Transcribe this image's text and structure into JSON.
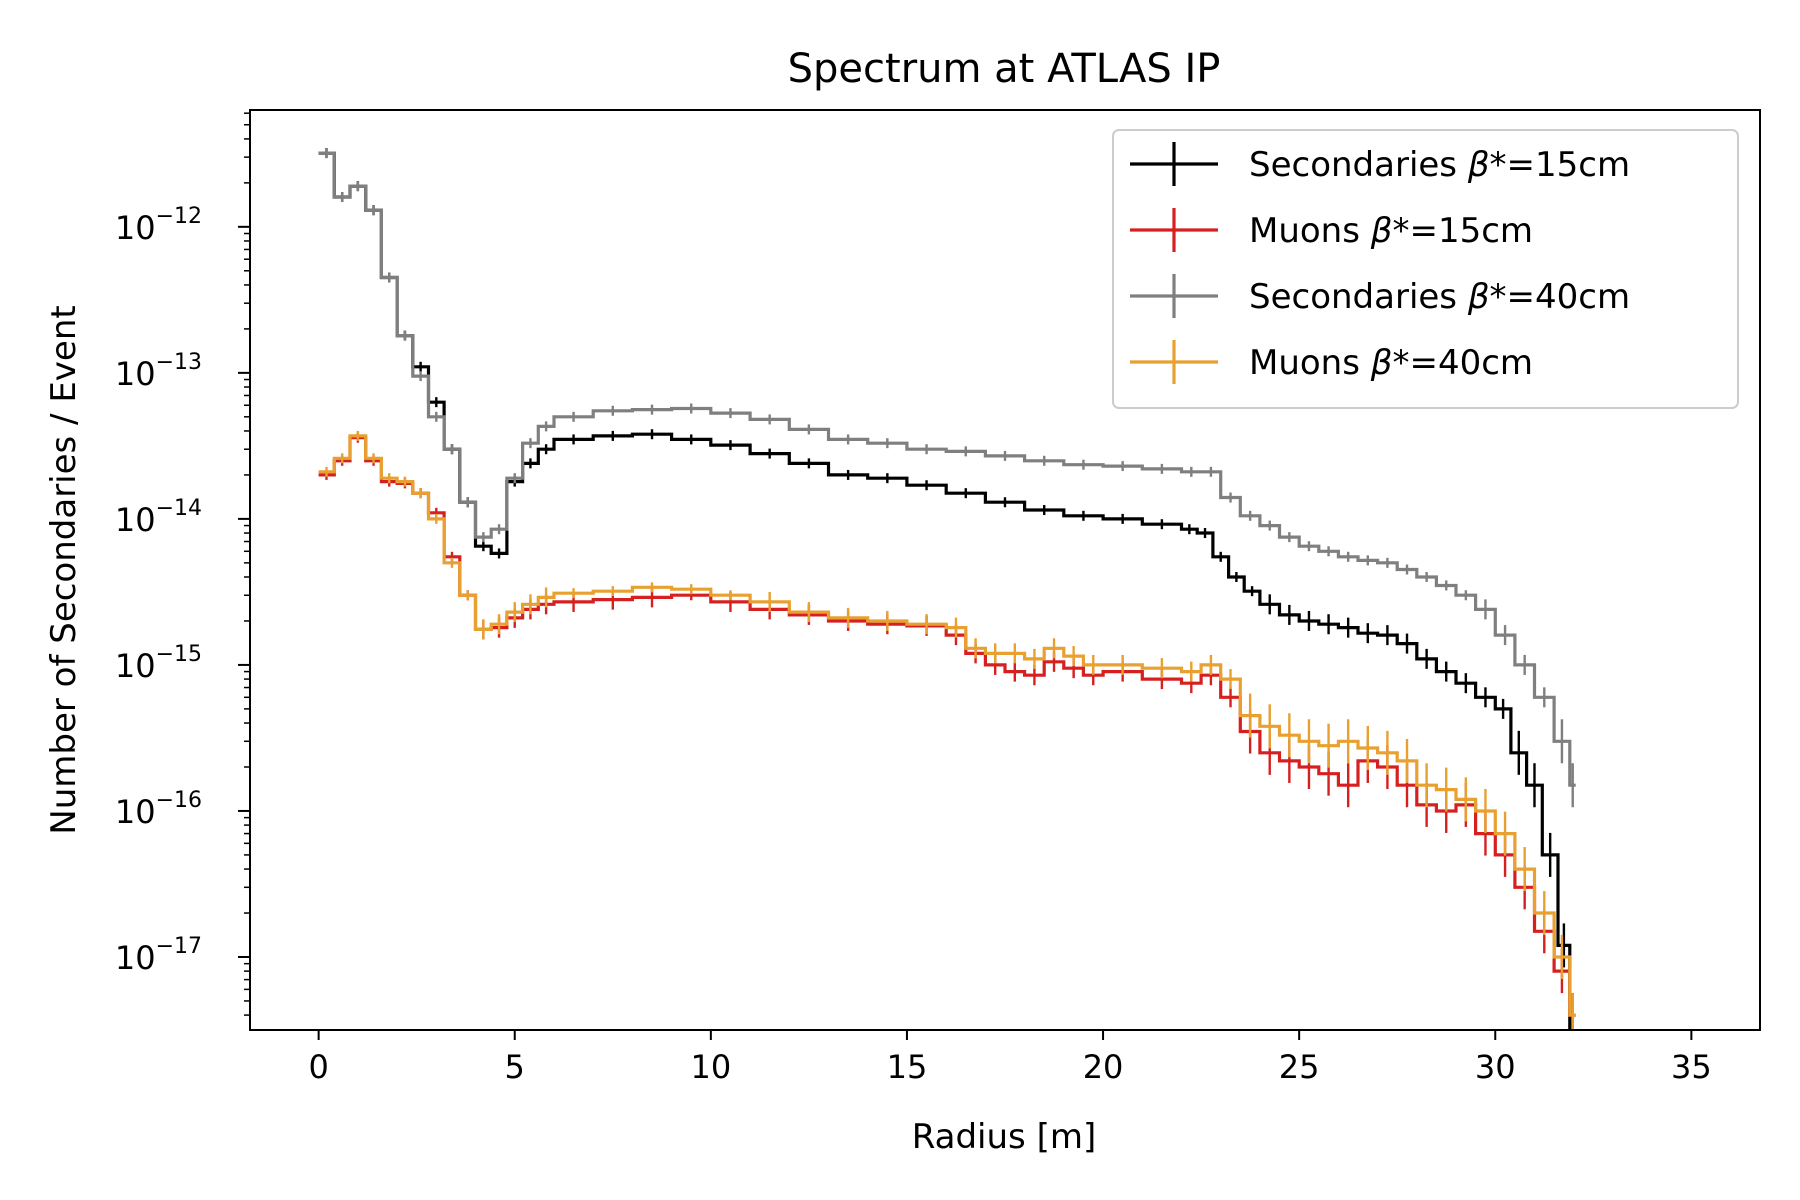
{
  "chart_data": {
    "type": "line",
    "title": "Spectrum at ATLAS IP",
    "xlabel": "Radius [m]",
    "ylabel": "Number of Secondaries / Event",
    "xlim": [
      -1.75,
      36.75
    ],
    "ylim_log10": [
      -17.5,
      -11.2
    ],
    "log_y": true,
    "grid": false,
    "legend_placement": "top-right",
    "x_ticks": [
      0,
      5,
      10,
      15,
      20,
      25,
      30,
      35
    ],
    "x_tick_labels": [
      "0",
      "5",
      "10",
      "15",
      "20",
      "25",
      "30",
      "35"
    ],
    "y_ticks_log10": [
      -12,
      -13,
      -14,
      -15,
      -16,
      -17
    ],
    "y_tick_labels": [
      {
        "base": "10",
        "exp": "−12"
      },
      {
        "base": "10",
        "exp": "−13"
      },
      {
        "base": "10",
        "exp": "−14"
      },
      {
        "base": "10",
        "exp": "−15"
      },
      {
        "base": "10",
        "exp": "−16"
      },
      {
        "base": "10",
        "exp": "−17"
      }
    ],
    "series": [
      {
        "name": "Secondaries β*=15cm",
        "label_prefix": "Secondaries ",
        "label_beta": "β",
        "label_suffix": "*=15cm",
        "color": "#000000",
        "x": [
          0.0,
          0.4,
          0.8,
          1.2,
          1.6,
          2.0,
          2.4,
          2.8,
          3.2,
          3.6,
          4.0,
          4.4,
          4.8,
          5.2,
          5.6,
          6.0,
          7.0,
          8.0,
          9.0,
          10.0,
          11.0,
          12.0,
          13.0,
          14.0,
          15.0,
          16.0,
          17.0,
          18.0,
          19.0,
          20.0,
          21.0,
          22.0,
          22.4,
          22.8,
          23.2,
          23.6,
          24.0,
          24.5,
          25.0,
          25.5,
          26.0,
          26.5,
          27.0,
          27.5,
          28.0,
          28.5,
          29.0,
          29.5,
          30.0,
          30.4,
          30.8,
          31.2,
          31.6,
          31.9
        ],
        "y": [
          3.2e-12,
          1.6e-12,
          1.9e-12,
          1.3e-12,
          4.5e-13,
          1.8e-13,
          1.1e-13,
          6.3e-14,
          3e-14,
          1.3e-14,
          6.5e-15,
          5.8e-15,
          1.8e-14,
          2.4e-14,
          3e-14,
          3.5e-14,
          3.7e-14,
          3.8e-14,
          3.5e-14,
          3.2e-14,
          2.8e-14,
          2.4e-14,
          2e-14,
          1.9e-14,
          1.7e-14,
          1.5e-14,
          1.3e-14,
          1.15e-14,
          1.05e-14,
          1e-14,
          9.2e-15,
          8.5e-15,
          8e-15,
          5.5e-15,
          4e-15,
          3.2e-15,
          2.6e-15,
          2.2e-15,
          2e-15,
          1.9e-15,
          1.8e-15,
          1.65e-15,
          1.6e-15,
          1.4e-15,
          1.1e-15,
          9e-16,
          7.5e-16,
          6e-16,
          5e-16,
          2.5e-16,
          1.5e-16,
          5e-17,
          1.2e-17,
          3e-18
        ]
      },
      {
        "name": "Muons β*=15cm",
        "label_prefix": "Muons ",
        "label_beta": "β",
        "label_suffix": "*=15cm",
        "color": "#d62020",
        "x": [
          0.0,
          0.4,
          0.8,
          1.2,
          1.6,
          2.0,
          2.4,
          2.8,
          3.2,
          3.6,
          4.0,
          4.4,
          4.8,
          5.2,
          5.6,
          6.0,
          7.0,
          8.0,
          9.0,
          10.0,
          11.0,
          12.0,
          13.0,
          14.0,
          15.0,
          16.0,
          16.5,
          17.0,
          17.5,
          18.0,
          18.5,
          19.0,
          19.5,
          20.0,
          21.0,
          22.0,
          22.5,
          23.0,
          23.5,
          24.0,
          24.5,
          25.0,
          25.5,
          26.0,
          26.5,
          27.0,
          27.5,
          28.0,
          28.5,
          29.0,
          29.5,
          30.0,
          30.5,
          31.0,
          31.5,
          31.9
        ],
        "y": [
          2e-14,
          2.5e-14,
          3.6e-14,
          2.5e-14,
          1.8e-14,
          1.75e-14,
          1.5e-14,
          1.1e-14,
          5.5e-15,
          3e-15,
          1.75e-15,
          1.8e-15,
          2.1e-15,
          2.4e-15,
          2.6e-15,
          2.7e-15,
          2.8e-15,
          2.9e-15,
          3e-15,
          2.7e-15,
          2.4e-15,
          2.2e-15,
          2e-15,
          1.9e-15,
          1.85e-15,
          1.6e-15,
          1.2e-15,
          1e-15,
          9e-16,
          8.5e-16,
          1.05e-15,
          9.5e-16,
          8.5e-16,
          9e-16,
          8e-16,
          7.5e-16,
          8.5e-16,
          6e-16,
          3.5e-16,
          2.5e-16,
          2.2e-16,
          2e-16,
          1.8e-16,
          1.5e-16,
          2.2e-16,
          2e-16,
          1.5e-16,
          1.1e-16,
          1e-16,
          1.1e-16,
          7e-17,
          5e-17,
          3e-17,
          1.5e-17,
          8e-18,
          4e-18
        ]
      },
      {
        "name": "Secondaries β*=40cm",
        "label_prefix": "Secondaries ",
        "label_beta": "β",
        "label_suffix": "*=40cm",
        "color": "#7f7f7f",
        "x": [
          0.0,
          0.4,
          0.8,
          1.2,
          1.6,
          2.0,
          2.4,
          2.8,
          3.2,
          3.6,
          4.0,
          4.4,
          4.8,
          5.2,
          5.6,
          6.0,
          7.0,
          8.0,
          9.0,
          10.0,
          11.0,
          12.0,
          13.0,
          14.0,
          15.0,
          16.0,
          17.0,
          18.0,
          19.0,
          20.0,
          21.0,
          22.0,
          22.5,
          23.0,
          23.5,
          24.0,
          24.5,
          25.0,
          25.5,
          26.0,
          26.5,
          27.0,
          27.5,
          28.0,
          28.5,
          29.0,
          29.5,
          30.0,
          30.5,
          31.0,
          31.5,
          31.9
        ],
        "y": [
          3.2e-12,
          1.6e-12,
          1.9e-12,
          1.3e-12,
          4.5e-13,
          1.8e-13,
          9.5e-14,
          5e-14,
          3e-14,
          1.3e-14,
          7.5e-15,
          8.5e-15,
          1.9e-14,
          3.3e-14,
          4.3e-14,
          5e-14,
          5.5e-14,
          5.6e-14,
          5.7e-14,
          5.3e-14,
          4.8e-14,
          4.1e-14,
          3.5e-14,
          3.3e-14,
          3e-14,
          2.9e-14,
          2.7e-14,
          2.5e-14,
          2.35e-14,
          2.3e-14,
          2.2e-14,
          2.1e-14,
          2.1e-14,
          1.4e-14,
          1.05e-14,
          9e-15,
          7.5e-15,
          6.5e-15,
          6e-15,
          5.5e-15,
          5.2e-15,
          5e-15,
          4.5e-15,
          4e-15,
          3.5e-15,
          3e-15,
          2.4e-15,
          1.6e-15,
          1e-15,
          6e-16,
          3e-16,
          1.5e-16
        ]
      },
      {
        "name": "Muons β*=40cm",
        "label_prefix": "Muons ",
        "label_beta": "β",
        "label_suffix": "*=40cm",
        "color": "#e8a030",
        "x": [
          0.0,
          0.4,
          0.8,
          1.2,
          1.6,
          2.0,
          2.4,
          2.8,
          3.2,
          3.6,
          4.0,
          4.4,
          4.8,
          5.2,
          5.6,
          6.0,
          7.0,
          8.0,
          9.0,
          10.0,
          11.0,
          12.0,
          13.0,
          14.0,
          15.0,
          16.0,
          16.5,
          17.0,
          17.5,
          18.0,
          18.5,
          19.0,
          19.5,
          20.0,
          21.0,
          22.0,
          22.5,
          23.0,
          23.5,
          24.0,
          24.5,
          25.0,
          25.5,
          26.0,
          26.5,
          27.0,
          27.5,
          28.0,
          28.5,
          29.0,
          29.5,
          30.0,
          30.5,
          31.0,
          31.5,
          31.9
        ],
        "y": [
          2.1e-14,
          2.6e-14,
          3.7e-14,
          2.6e-14,
          1.9e-14,
          1.8e-14,
          1.5e-14,
          1e-14,
          5e-15,
          3e-15,
          1.75e-15,
          1.9e-15,
          2.3e-15,
          2.6e-15,
          2.9e-15,
          3.1e-15,
          3.2e-15,
          3.4e-15,
          3.3e-15,
          3e-15,
          2.7e-15,
          2.3e-15,
          2.1e-15,
          2e-15,
          1.9e-15,
          1.8e-15,
          1.3e-15,
          1.2e-15,
          1.2e-15,
          1.1e-15,
          1.3e-15,
          1.15e-15,
          1e-15,
          1e-15,
          9.5e-16,
          9e-16,
          1e-15,
          8e-16,
          4.5e-16,
          3.8e-16,
          3.3e-16,
          3e-16,
          2.8e-16,
          3e-16,
          2.7e-16,
          2.5e-16,
          2.2e-16,
          1.5e-16,
          1.4e-16,
          1.2e-16,
          1e-16,
          7e-17,
          4e-17,
          2e-17,
          1e-17,
          4e-18
        ]
      }
    ]
  }
}
